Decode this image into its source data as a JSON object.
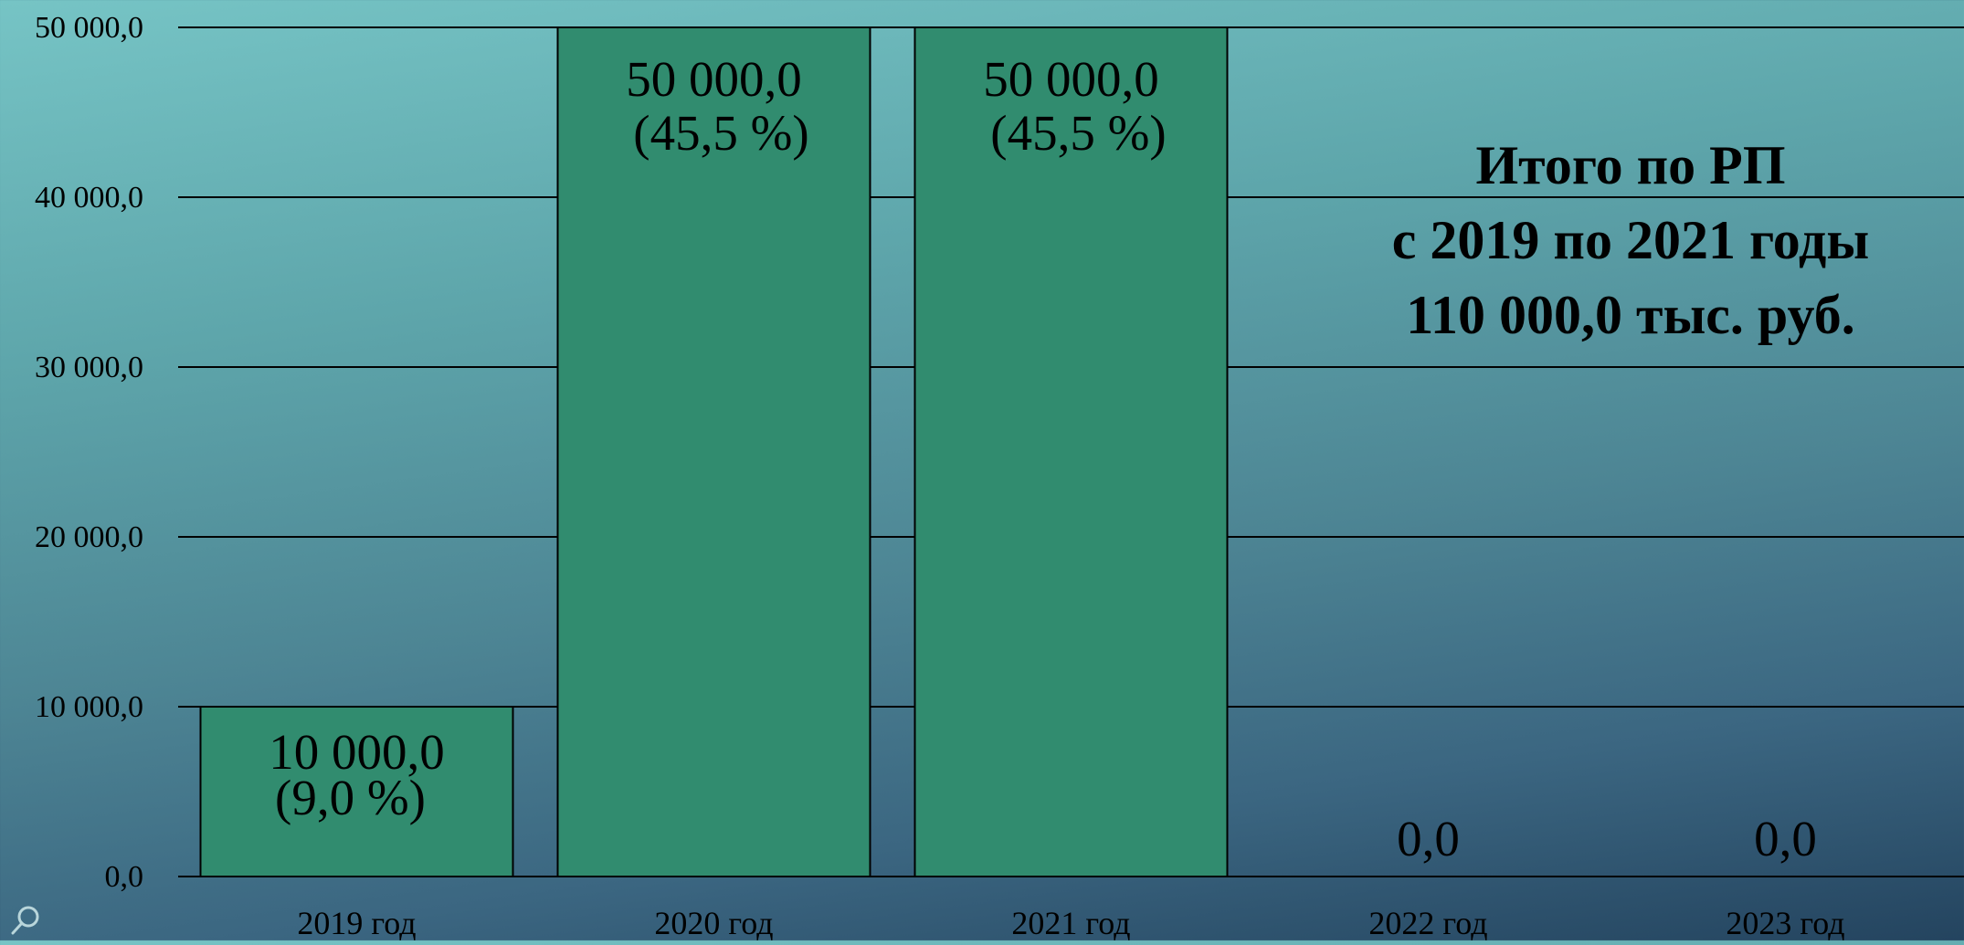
{
  "colors": {
    "bar_fill": "#318c6f",
    "gridline": "#000000",
    "text": "#000000"
  },
  "summary": {
    "line1": "Итого по РП",
    "line2": "с 2019 по 2021 годы",
    "line3": "110 000,0 тыс. руб."
  },
  "icons": {
    "corner": "search-icon"
  },
  "chart_data": {
    "type": "bar",
    "title": "",
    "xlabel": "",
    "ylabel": "",
    "grid": true,
    "ylim": [
      0,
      50000
    ],
    "y_ticks": [
      0,
      10000,
      20000,
      30000,
      40000,
      50000
    ],
    "y_tick_labels": [
      "0,0",
      "10 000,0",
      "20 000,0",
      "30 000,0",
      "40 000,0",
      "50 000,0"
    ],
    "categories": [
      "2019 год",
      "2020 год",
      "2021 год",
      "2022 год",
      "2023 год"
    ],
    "values": [
      10000,
      50000,
      50000,
      0,
      0
    ],
    "value_labels": [
      "10 000,0",
      "50 000,0",
      "50 000,0",
      "0,0",
      "0,0"
    ],
    "percent_labels": [
      "(9,0 %)",
      "(45,5 %)",
      "(45,5 %)",
      "",
      ""
    ]
  }
}
